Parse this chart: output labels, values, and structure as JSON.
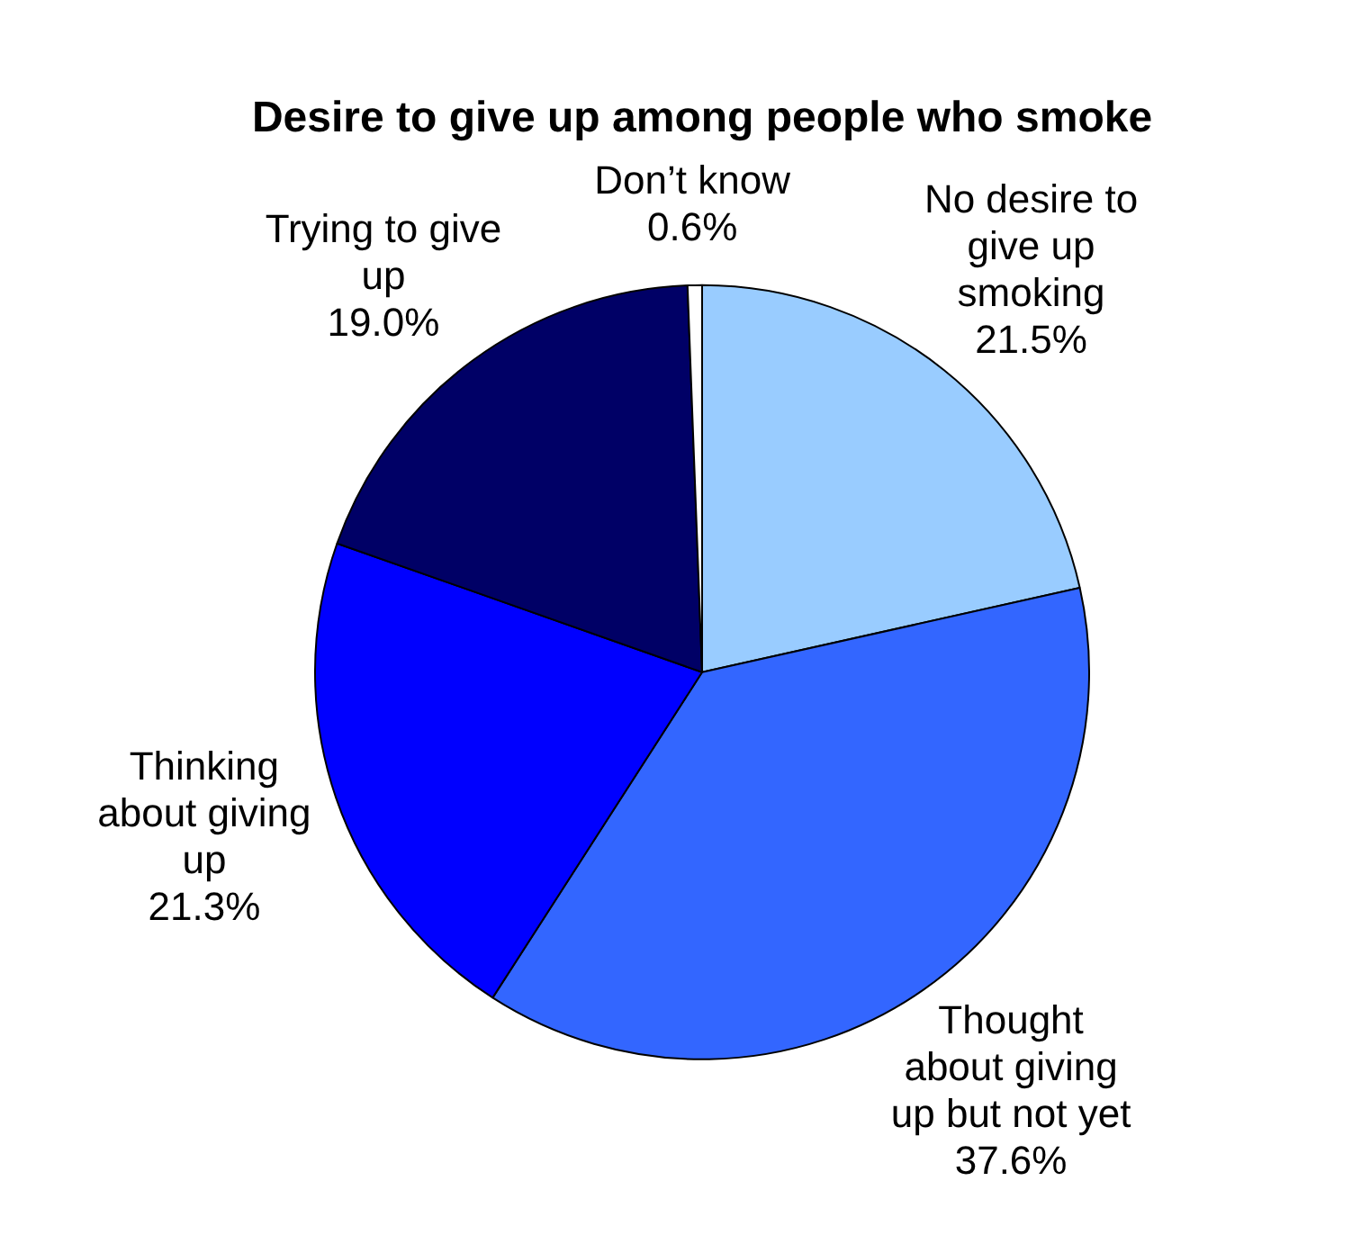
{
  "chart_data": {
    "type": "pie",
    "title": "Desire to give up among people who smoke",
    "categories": [
      "No desire to give up smoking",
      "Thought about giving up but not yet",
      "Thinking about giving up",
      "Trying to give up",
      "Don’t know"
    ],
    "values": [
      21.5,
      37.6,
      21.3,
      19.0,
      0.6
    ],
    "value_labels": [
      "21.5%",
      "37.6%",
      "21.3%",
      "19.0%",
      "0.6%"
    ],
    "colors": [
      "#99ccff",
      "#3366ff",
      "#0000ff",
      "#000066",
      "#ffffff"
    ],
    "legend": false
  }
}
